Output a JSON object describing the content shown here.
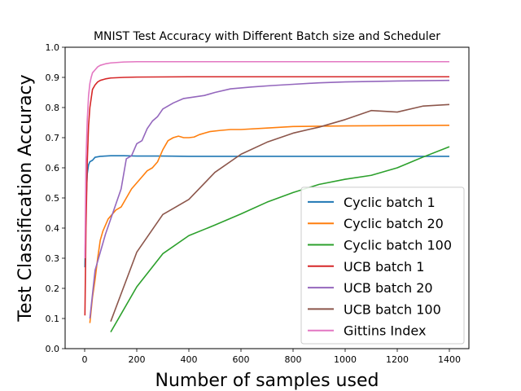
{
  "chart_data": {
    "type": "line",
    "title": "MNIST Test Accuracy with Different Batch size and Scheduler",
    "xlabel": "Number of samples used",
    "ylabel": "Test Classification Accuracy",
    "xlim": [
      -75,
      1475
    ],
    "ylim": [
      0.0,
      1.0
    ],
    "xticks": [
      0,
      200,
      400,
      600,
      800,
      1000,
      1200,
      1400
    ],
    "yticks": [
      0.0,
      0.1,
      0.2,
      0.3,
      0.4,
      0.5,
      0.6,
      0.7,
      0.8,
      0.9,
      1.0
    ],
    "ytick_labels": [
      "0.0",
      "0.1",
      "0.2",
      "0.3",
      "0.4",
      "0.5",
      "0.6",
      "0.7",
      "0.8",
      "0.9",
      "1.0"
    ],
    "grid": false,
    "legend_position": "lower-right",
    "series": [
      {
        "name": "Cyclic batch 1",
        "color": "#1f77b4",
        "x": [
          1,
          5,
          10,
          15,
          20,
          30,
          40,
          60,
          80,
          100,
          150,
          200,
          300,
          400,
          600,
          800,
          1000,
          1200,
          1400
        ],
        "y": [
          0.27,
          0.48,
          0.58,
          0.61,
          0.62,
          0.625,
          0.635,
          0.638,
          0.639,
          0.64,
          0.64,
          0.639,
          0.639,
          0.638,
          0.638,
          0.638,
          0.638,
          0.638,
          0.638
        ]
      },
      {
        "name": "Cyclic batch 20",
        "color": "#ff7f0e",
        "x": [
          20,
          30,
          40,
          50,
          60,
          70,
          80,
          90,
          100,
          120,
          140,
          160,
          180,
          200,
          220,
          240,
          260,
          280,
          300,
          320,
          340,
          360,
          380,
          400,
          420,
          440,
          480,
          520,
          560,
          600,
          700,
          800,
          1000,
          1200,
          1400
        ],
        "y": [
          0.085,
          0.17,
          0.23,
          0.3,
          0.36,
          0.39,
          0.41,
          0.43,
          0.44,
          0.46,
          0.47,
          0.5,
          0.53,
          0.55,
          0.57,
          0.59,
          0.6,
          0.62,
          0.66,
          0.69,
          0.7,
          0.705,
          0.7,
          0.7,
          0.702,
          0.71,
          0.72,
          0.724,
          0.727,
          0.727,
          0.732,
          0.737,
          0.739,
          0.74,
          0.741
        ]
      },
      {
        "name": "Cyclic batch 100",
        "color": "#2ca02c",
        "x": [
          100,
          200,
          300,
          400,
          500,
          600,
          700,
          800,
          900,
          1000,
          1100,
          1200,
          1300,
          1400
        ],
        "y": [
          0.055,
          0.205,
          0.315,
          0.375,
          0.41,
          0.447,
          0.486,
          0.518,
          0.545,
          0.562,
          0.575,
          0.6,
          0.636,
          0.67
        ]
      },
      {
        "name": "UCB batch 1",
        "color": "#d62728",
        "x": [
          1,
          5,
          10,
          15,
          20,
          25,
          30,
          40,
          50,
          60,
          80,
          100,
          150,
          200,
          400,
          600,
          800,
          1000,
          1200,
          1400
        ],
        "y": [
          0.11,
          0.4,
          0.62,
          0.74,
          0.8,
          0.83,
          0.86,
          0.875,
          0.885,
          0.89,
          0.895,
          0.898,
          0.9,
          0.901,
          0.902,
          0.902,
          0.902,
          0.902,
          0.902,
          0.902
        ]
      },
      {
        "name": "UCB batch 20",
        "color": "#9467bd",
        "x": [
          20,
          40,
          60,
          80,
          100,
          120,
          140,
          160,
          180,
          200,
          220,
          240,
          260,
          280,
          300,
          340,
          380,
          420,
          460,
          500,
          560,
          640,
          720,
          800,
          900,
          1000,
          1200,
          1400
        ],
        "y": [
          0.1,
          0.26,
          0.32,
          0.38,
          0.43,
          0.48,
          0.53,
          0.63,
          0.64,
          0.68,
          0.69,
          0.73,
          0.755,
          0.77,
          0.795,
          0.815,
          0.83,
          0.835,
          0.84,
          0.85,
          0.862,
          0.868,
          0.873,
          0.877,
          0.882,
          0.885,
          0.888,
          0.89
        ]
      },
      {
        "name": "UCB batch 100",
        "color": "#8c564b",
        "x": [
          100,
          200,
          300,
          400,
          500,
          600,
          700,
          800,
          900,
          1000,
          1100,
          1200,
          1300,
          1400
        ],
        "y": [
          0.09,
          0.32,
          0.445,
          0.495,
          0.585,
          0.645,
          0.685,
          0.715,
          0.735,
          0.76,
          0.79,
          0.785,
          0.805,
          0.81
        ]
      },
      {
        "name": "Gittins Index",
        "color": "#e377c2",
        "x": [
          1,
          5,
          10,
          15,
          20,
          25,
          30,
          40,
          50,
          60,
          80,
          100,
          150,
          200,
          400,
          600,
          800,
          1000,
          1200,
          1400
        ],
        "y": [
          0.3,
          0.62,
          0.76,
          0.84,
          0.88,
          0.9,
          0.915,
          0.925,
          0.935,
          0.94,
          0.945,
          0.948,
          0.951,
          0.952,
          0.952,
          0.952,
          0.952,
          0.952,
          0.952,
          0.952
        ]
      }
    ]
  }
}
